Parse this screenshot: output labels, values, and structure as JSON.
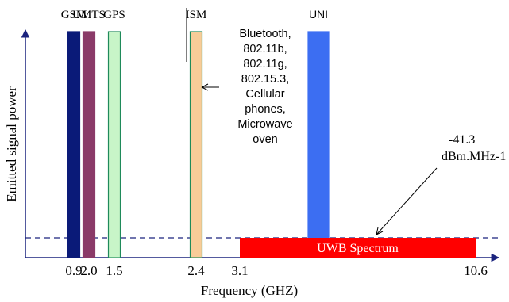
{
  "chart_data": {
    "type": "bar",
    "xlabel": "Frequency (GHZ)",
    "ylabel": "Emitted signal power",
    "bands": [
      {
        "label": "GSM",
        "freq": 0.9,
        "tick": "0.9",
        "color": "#0a1a78",
        "stroke": "#0a1a78",
        "relative_power": 1.0
      },
      {
        "label": "GPS",
        "freq": 1.5,
        "tick": "1.5",
        "color": "#c8f5c8",
        "stroke": "#1f8a5a",
        "relative_power": 1.0
      },
      {
        "label": "UMTS",
        "freq": 2.0,
        "tick": "2.0",
        "color": "#8a3a68",
        "stroke": "#8a3a68",
        "relative_power": 1.0
      },
      {
        "label": "ISM",
        "freq": 2.4,
        "tick": "2.4",
        "color": "#f8cc98",
        "stroke": "#1f8a5a",
        "relative_power": 1.0
      },
      {
        "label": "UNI",
        "freq": 5.5,
        "tick": "",
        "color": "#3c6ef2",
        "stroke": "#3c6ef2",
        "relative_power": 1.0
      }
    ],
    "uwb": {
      "label": "UWB Spectrum",
      "from": 3.1,
      "to": 10.6,
      "from_tick": "3.1",
      "to_tick": "10.6",
      "color": "#ff0000"
    },
    "limit": {
      "line1": "-41.3",
      "line2": "dBm.MHz-1"
    },
    "ism_note": [
      "Bluetooth,",
      "802.11b,",
      "802.11g,",
      "802.15.3,",
      "Cellular",
      "phones,",
      "Microwave",
      "oven"
    ],
    "axis_color": "#1a237e"
  }
}
